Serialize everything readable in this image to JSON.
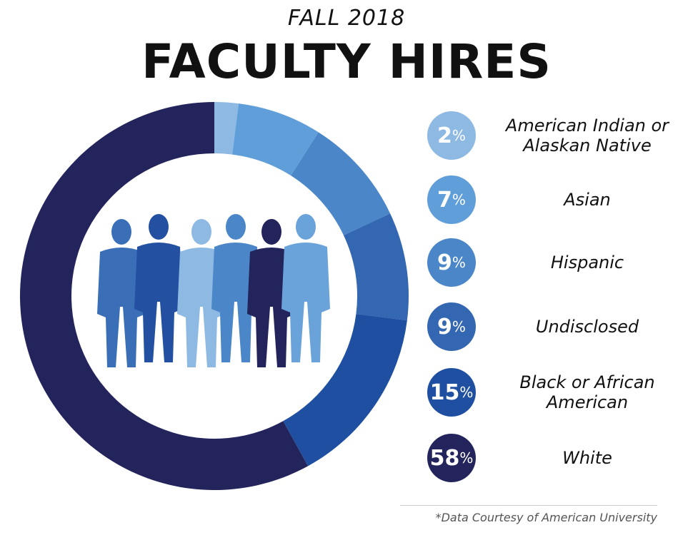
{
  "chart_data": {
    "type": "pie",
    "subtitle": "FALL 2018",
    "title": "FACULTY HIRES",
    "categories": [
      "American Indian or Alaskan Native",
      "Asian",
      "Hispanic",
      "Undisclosed",
      "Black or African American",
      "White"
    ],
    "values": [
      2,
      7,
      9,
      9,
      15,
      58
    ],
    "value_labels": [
      "2",
      "7",
      "9",
      "9",
      "15",
      "58"
    ],
    "unit": "%",
    "colors": [
      "#8db9e3",
      "#5f9ed8",
      "#4a86c8",
      "#3467b2",
      "#1f4fa0",
      "#23245c"
    ],
    "donut": true,
    "legend_position": "right",
    "footnote": "*Data Courtesy of American University"
  }
}
